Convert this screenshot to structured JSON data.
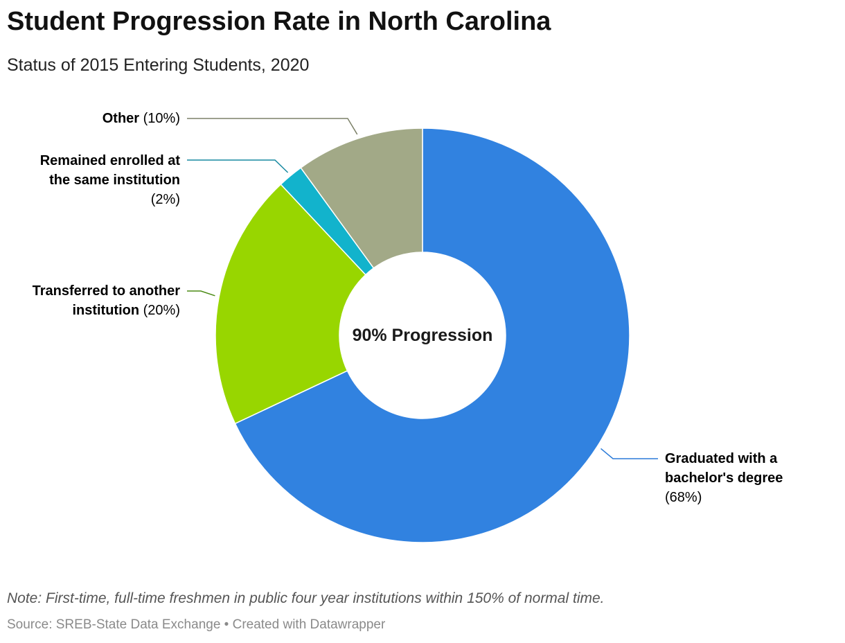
{
  "header": {
    "title": "Student Progression Rate in North Carolina",
    "subtitle": "Status of 2015 Entering Students, 2020"
  },
  "chart_data": {
    "type": "pie",
    "variant": "donut",
    "title": "Student Progression Rate in North Carolina",
    "subtitle": "Status of 2015 Entering Students, 2020",
    "center_label": "90% Progression",
    "slices": [
      {
        "key": "graduated",
        "name_lines": [
          "Graduated with a",
          "bachelor's degree"
        ],
        "pct_label": "(68%)",
        "value": 68,
        "color": "#3182e0"
      },
      {
        "key": "transferred",
        "name_lines": [
          "Transferred to another",
          "institution"
        ],
        "pct_label": "(20%)",
        "value": 20,
        "color": "#98d600"
      },
      {
        "key": "enrolled",
        "name_lines": [
          "Remained enrolled at",
          "the same institution"
        ],
        "pct_label": "(2%)",
        "value": 2,
        "color": "#12b3cc"
      },
      {
        "key": "other",
        "name_lines": [
          "Other"
        ],
        "pct_label": "(10%)",
        "value": 10,
        "color": "#a2a987"
      }
    ],
    "label_colors": {
      "graduated": "#2a7ad8",
      "transferred": "#4a8a14",
      "enrolled": "#1688a0",
      "other": "#7c8068"
    }
  },
  "footer": {
    "note": "Note: First-time, full-time freshmen in public four year institutions within 150% of normal time.",
    "source": "Source: SREB-State Data Exchange • Created with Datawrapper"
  }
}
